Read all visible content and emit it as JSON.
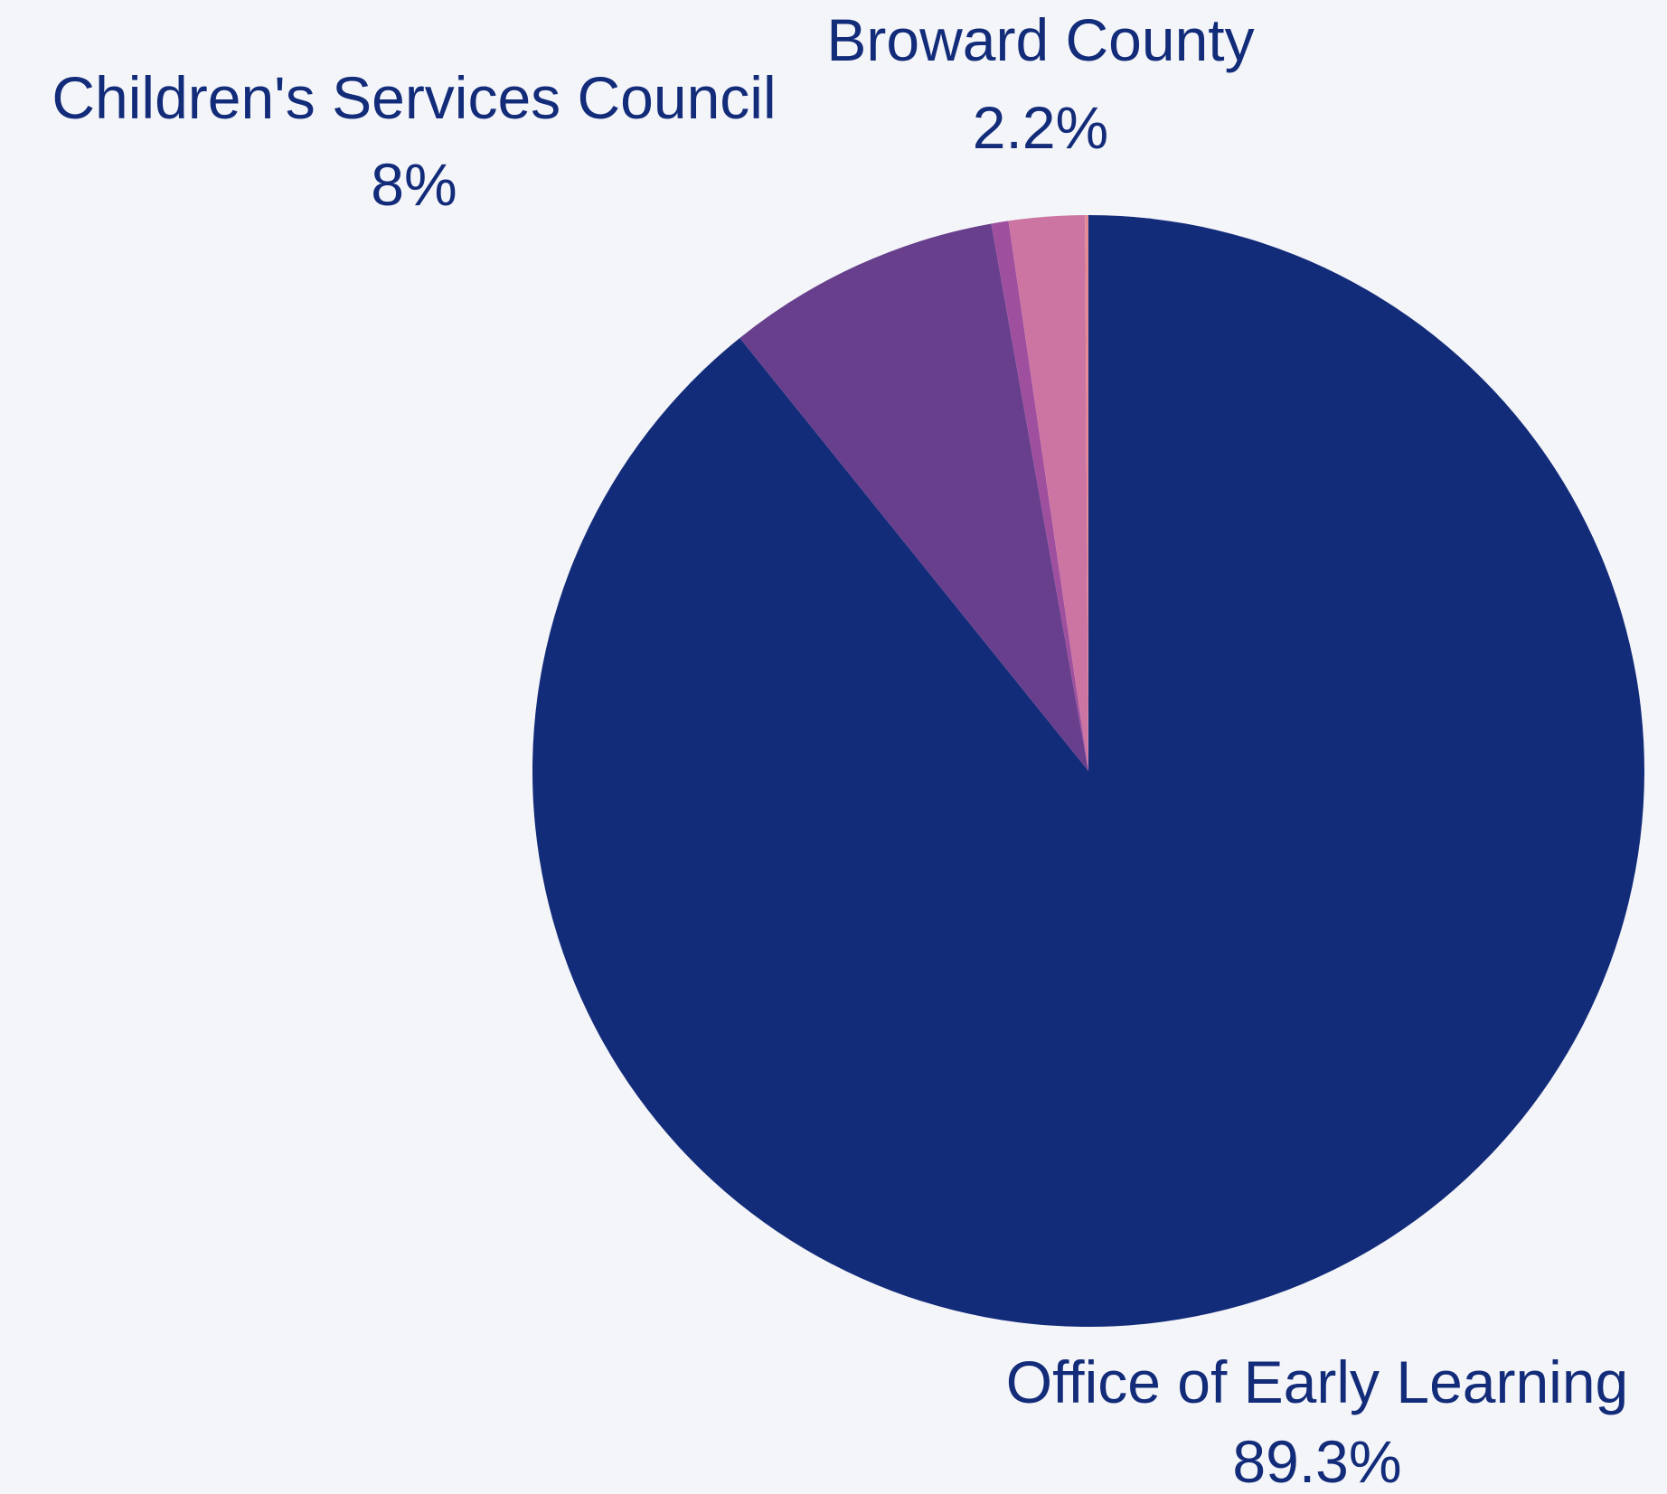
{
  "chart_data": {
    "type": "pie",
    "title": "",
    "start_angle_deg": 90,
    "direction": "clockwise",
    "slices": [
      {
        "label": "Office of Early Learning",
        "pct_label": "89.3%",
        "value": 89.3,
        "color": "#132c7a"
      },
      {
        "label": "Children's Services Council",
        "pct_label": "8%",
        "value": 8.0,
        "color": "#673f8c"
      },
      {
        "label": "",
        "pct_label": "",
        "value": 0.5,
        "color": "#9e4f9e"
      },
      {
        "label": "Broward County",
        "pct_label": "2.2%",
        "value": 2.2,
        "color": "#cd75a2"
      },
      {
        "label": "",
        "pct_label": "",
        "value": 0.1,
        "color": "#e58a94"
      }
    ],
    "background": "#f4f5f9",
    "label_color": "#132c7a"
  }
}
